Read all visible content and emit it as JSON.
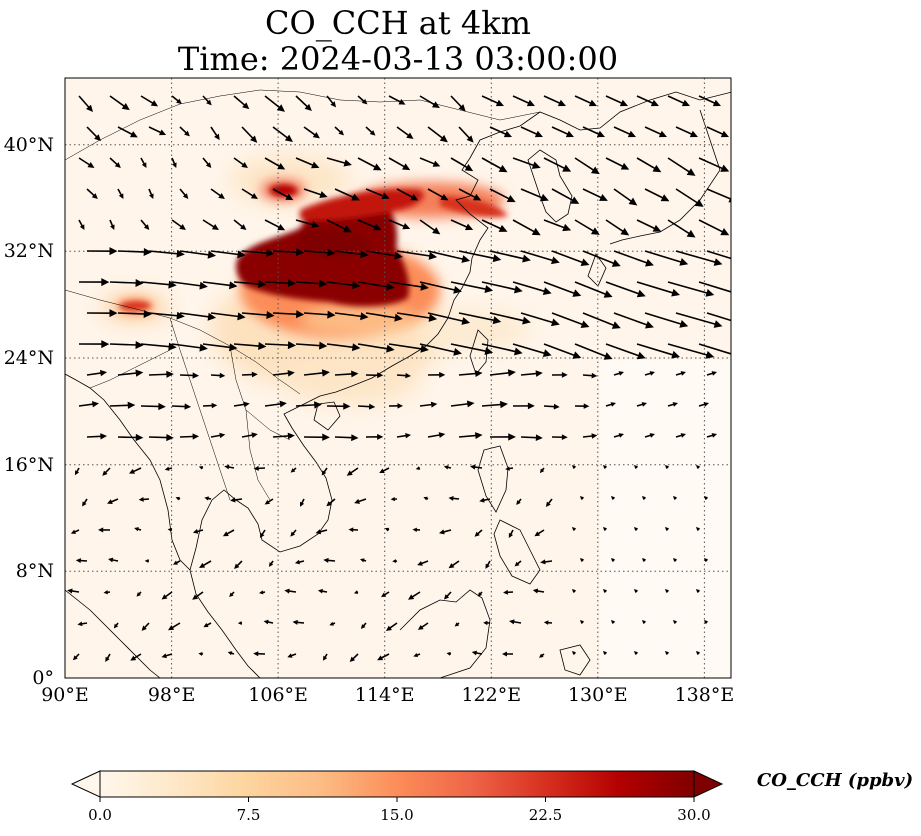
{
  "title_line1": "CO_CCH at 4km",
  "title_line2": "Time: 2024-03-13 03:00:00",
  "map": {
    "projection": "PlateCarree",
    "lon_range": [
      90,
      140
    ],
    "lat_range": [
      0,
      45
    ],
    "gridlines": true,
    "coastlines": true,
    "borders": true,
    "x_tick_labels": [
      "90°E",
      "98°E",
      "106°E",
      "114°E",
      "122°E",
      "130°E",
      "138°E"
    ],
    "x_tick_lons": [
      90,
      98,
      106,
      114,
      122,
      130,
      138
    ],
    "y_tick_labels": [
      "0°",
      "8°N",
      "16°N",
      "24°N",
      "32°N",
      "40°N"
    ],
    "y_tick_lats": [
      0,
      8,
      16,
      24,
      32,
      40
    ],
    "field": "CO_CCH",
    "quiver": "wind vectors, predominantly westerly in the north, weaker and north-easterly in the south"
  },
  "colorbar": {
    "label": "CO_CCH (ppbv)",
    "colormap": "OrRd",
    "range": [
      0,
      30
    ],
    "extend": "both",
    "tick_labels": [
      "0.0",
      "7.5",
      "15.0",
      "22.5",
      "30.0"
    ],
    "tick_values": [
      0,
      7.5,
      15,
      22.5,
      30
    ],
    "colors": [
      "#fff7ec",
      "#fee8c8",
      "#fdd49e",
      "#fdbb84",
      "#fc8d59",
      "#ef6548",
      "#d7301f",
      "#b30000",
      "#7f0000"
    ]
  }
}
